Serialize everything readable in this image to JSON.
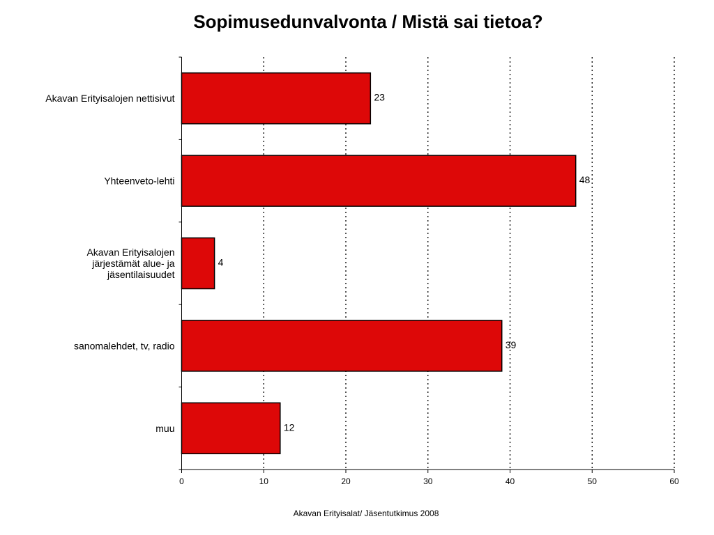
{
  "chart_data": {
    "type": "bar",
    "orientation": "horizontal",
    "title": "Sopimusedunvalvonta / Mistä sai tietoa?",
    "categories": [
      [
        "Akavan Erityisalojen nettisivut"
      ],
      [
        "Yhteenveto-lehti"
      ],
      [
        "Akavan Erityisalojen",
        "järjestämät alue- ja",
        "jäsentilaisuudet"
      ],
      [
        "sanomalehdet, tv, radio"
      ],
      [
        "muu"
      ]
    ],
    "values": [
      23,
      48,
      4,
      39,
      12
    ],
    "data_labels": [
      "23",
      "48",
      "4",
      "39",
      "12"
    ],
    "xlim": [
      0,
      60
    ],
    "xticks": [
      0,
      10,
      20,
      30,
      40,
      50,
      60
    ],
    "xtick_labels": [
      "0",
      "10",
      "20",
      "30",
      "40",
      "50",
      "60"
    ],
    "grid": "vertical dotted",
    "bar_color": "#dd0808",
    "legend": "none"
  },
  "footer": "Akavan Erityisalat/ Jäsentutkimus 2008"
}
